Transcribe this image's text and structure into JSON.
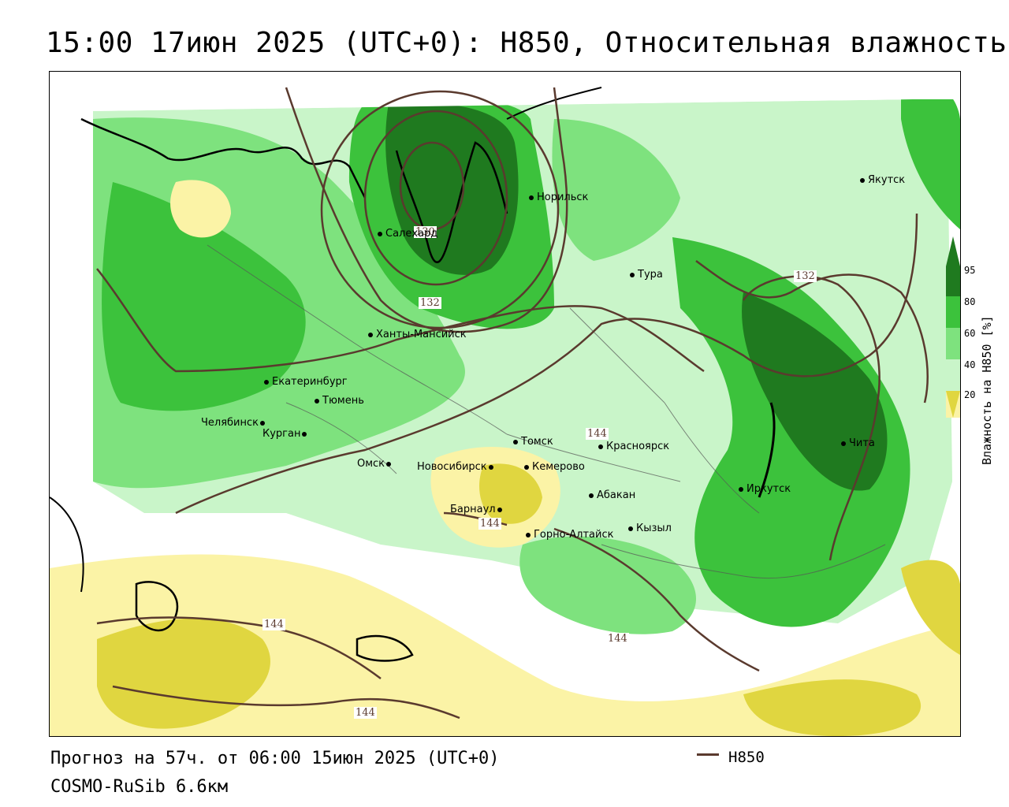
{
  "title": "15:00 17июн 2025 (UTC+0): H850, Относительная влажность",
  "footer": {
    "forecast": "Прогноз на 57ч. от 06:00 15июн 2025 (UTC+0)",
    "model": "COSMO-RuSib 6.6км",
    "legend_label": "H850"
  },
  "scale": {
    "title": "Влажность на H850 [%]",
    "ticks": [
      "95",
      "80",
      "60",
      "40",
      "20"
    ],
    "colors": [
      "#1f7a1f",
      "#3cc23c",
      "#7ee27e",
      "#c9f5c9",
      "#ffffff",
      "#fbf3a6",
      "#e0d640"
    ]
  },
  "cities": [
    {
      "name": "Якутск"
    },
    {
      "name": "Норильск"
    },
    {
      "name": "Салехард"
    },
    {
      "name": "Тура"
    },
    {
      "name": "Ханты-Мансийск"
    },
    {
      "name": "Екатеринбург"
    },
    {
      "name": "Тюмень"
    },
    {
      "name": "Челябинск"
    },
    {
      "name": "Курган"
    },
    {
      "name": "Омск"
    },
    {
      "name": "Томск"
    },
    {
      "name": "Красноярск"
    },
    {
      "name": "Новосибирск"
    },
    {
      "name": "Кемерово"
    },
    {
      "name": "Абакан"
    },
    {
      "name": "Барнаул"
    },
    {
      "name": "Горно-Алтайск"
    },
    {
      "name": "Кызыл"
    },
    {
      "name": "Иркутск"
    },
    {
      "name": "Чита"
    }
  ],
  "contours": [
    "130",
    "132",
    "132",
    "144",
    "144",
    "144",
    "144",
    "144"
  ]
}
